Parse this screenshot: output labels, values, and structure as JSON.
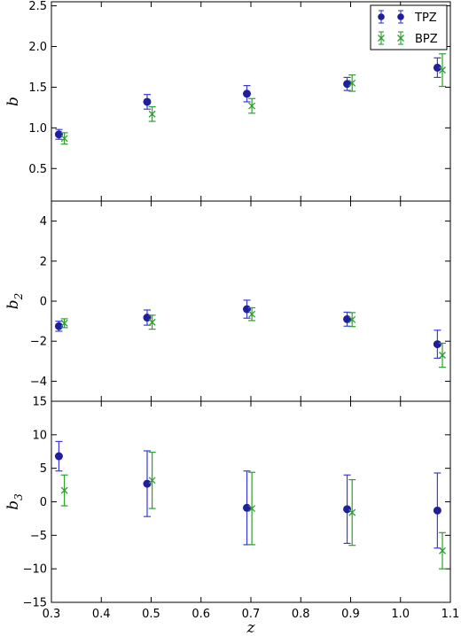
{
  "chart_data": {
    "type": "scatter",
    "x_axis": {
      "label": "z",
      "xlim": [
        0.3,
        1.1
      ],
      "ticks": [
        "0.3",
        "0.4",
        "0.5",
        "0.6",
        "0.7",
        "0.8",
        "0.9",
        "1.0",
        "1.1"
      ]
    },
    "legend": {
      "placement": "top-right",
      "entries": [
        {
          "name": "TPZ",
          "marker": "circle",
          "color": "#1f1f9e",
          "errcolor": "#3a3ae0"
        },
        {
          "name": "BPZ",
          "marker": "x",
          "color": "#2ca02c",
          "errcolor": "#2ca02c"
        }
      ]
    },
    "panels": [
      {
        "ylabel": "b",
        "ylim": [
          0.1,
          2.55
        ],
        "yticks": [
          "0.5",
          "1.0",
          "1.5",
          "2.0",
          "2.5"
        ],
        "series": [
          {
            "name": "TPZ",
            "x": [
              0.315,
              0.492,
              0.692,
              0.893,
              1.074
            ],
            "y": [
              0.92,
              1.32,
              1.42,
              1.54,
              1.74
            ],
            "err": [
              0.06,
              0.09,
              0.1,
              0.08,
              0.12
            ]
          },
          {
            "name": "BPZ",
            "x": [
              0.326,
              0.502,
              0.702,
              0.903,
              1.084
            ],
            "y": [
              0.87,
              1.17,
              1.27,
              1.55,
              1.71
            ],
            "err": [
              0.07,
              0.09,
              0.09,
              0.1,
              0.2
            ]
          }
        ]
      },
      {
        "ylabel": "b_2",
        "ylim": [
          -5,
          5
        ],
        "yticks": [
          "−4",
          "−2",
          "0",
          "2",
          "4"
        ],
        "series": [
          {
            "name": "TPZ",
            "x": [
              0.315,
              0.492,
              0.692,
              0.893,
              1.074
            ],
            "y": [
              -1.25,
              -0.82,
              -0.4,
              -0.9,
              -2.15
            ],
            "err": [
              0.25,
              0.38,
              0.45,
              0.35,
              0.7
            ]
          },
          {
            "name": "BPZ",
            "x": [
              0.326,
              0.502,
              0.702,
              0.903,
              1.084
            ],
            "y": [
              -1.1,
              -1.05,
              -0.65,
              -0.92,
              -2.7
            ],
            "err": [
              0.22,
              0.35,
              0.32,
              0.35,
              0.6
            ]
          }
        ]
      },
      {
        "ylabel": "b_3",
        "ylim": [
          -15,
          15
        ],
        "yticks": [
          "−15",
          "−10",
          "−5",
          "0",
          "5",
          "10",
          "15"
        ],
        "series": [
          {
            "name": "TPZ",
            "x": [
              0.315,
              0.492,
              0.692,
              0.893,
              1.074
            ],
            "y": [
              6.8,
              2.7,
              -0.9,
              -1.1,
              -1.3
            ],
            "err": [
              2.2,
              4.9,
              5.5,
              5.1,
              5.6
            ]
          },
          {
            "name": "BPZ",
            "x": [
              0.326,
              0.502,
              0.702,
              0.903,
              1.084
            ],
            "y": [
              1.7,
              3.2,
              -1.0,
              -1.6,
              -7.3
            ],
            "err": [
              2.3,
              4.2,
              5.4,
              4.9,
              2.7
            ]
          }
        ]
      }
    ]
  }
}
